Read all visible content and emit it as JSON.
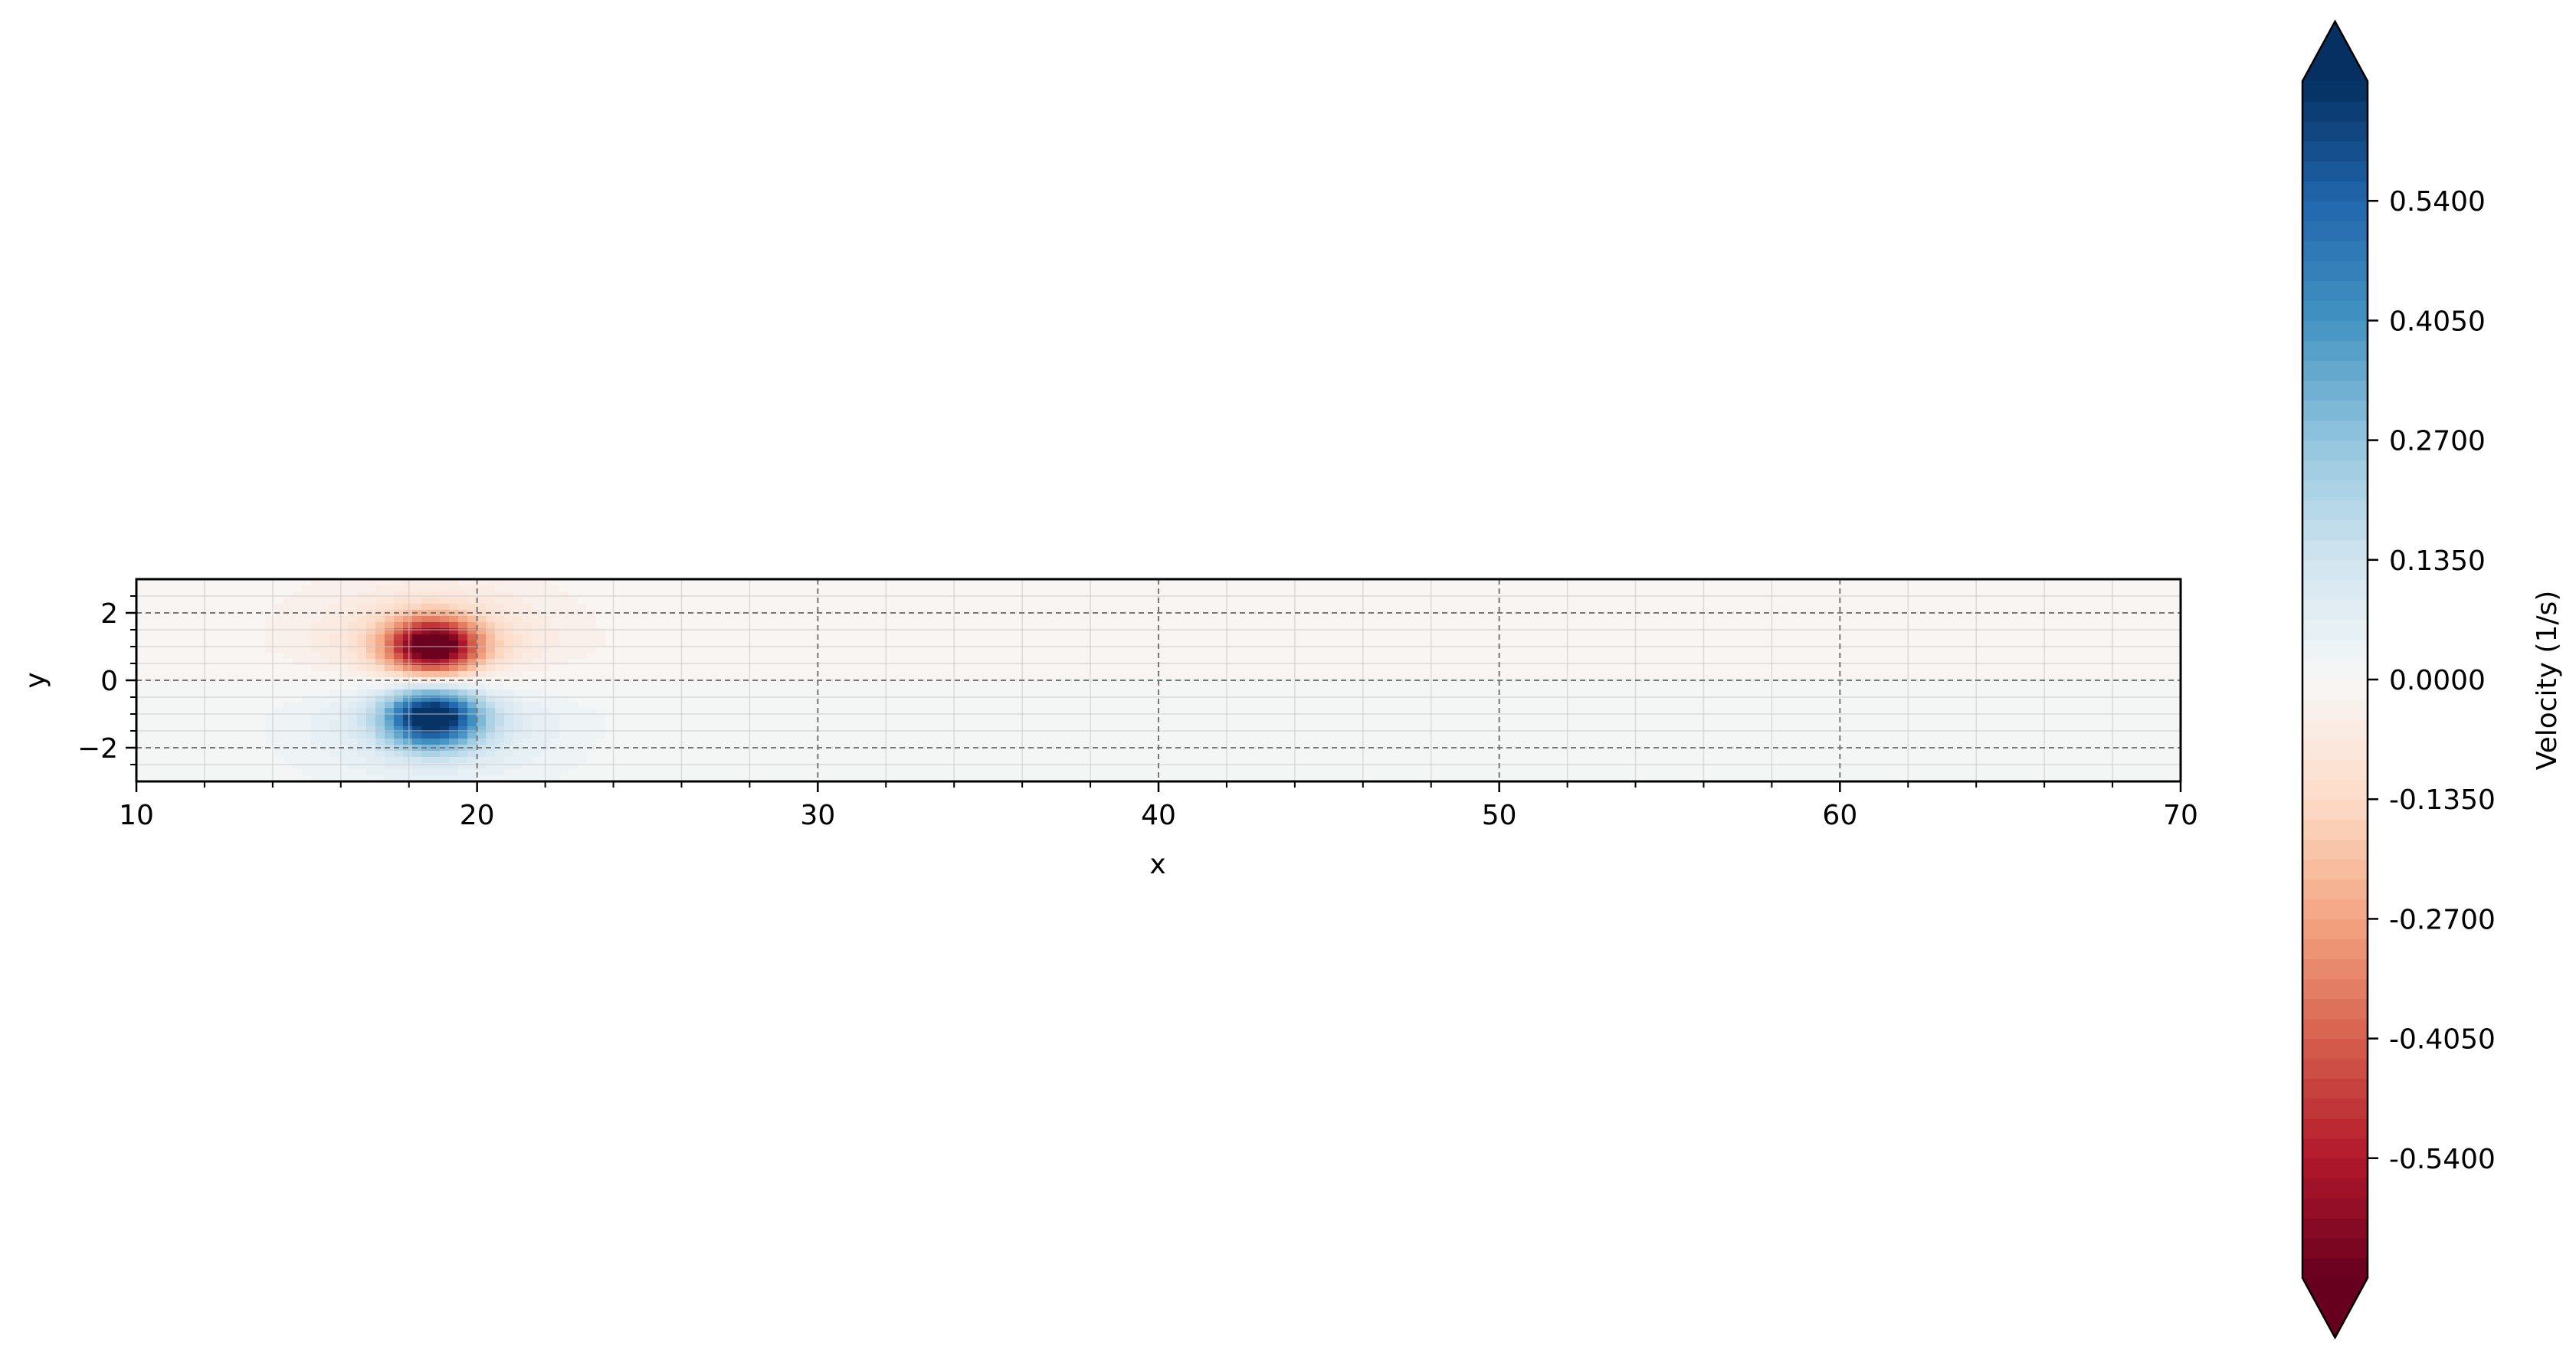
{
  "chart_data": {
    "type": "heatmap",
    "title": "",
    "xlabel": "x",
    "ylabel": "y",
    "xlim": [
      10,
      70
    ],
    "ylim": [
      -3,
      3
    ],
    "xticks": [
      "10",
      "20",
      "30",
      "40",
      "50",
      "60",
      "70"
    ],
    "yticks": [
      "2",
      "0",
      "−2"
    ],
    "x_tick_values": [
      10,
      20,
      30,
      40,
      50,
      60,
      70
    ],
    "y_tick_values": [
      2,
      0,
      -2
    ],
    "grid": true,
    "colormap": "RdBu",
    "colorbar": {
      "label": "Velocity (1/s)",
      "ticks": [
        "0.5400",
        "0.4050",
        "0.2700",
        "0.1350",
        "0.0000",
        "-0.1350",
        "-0.2700",
        "-0.4050",
        "-0.5400"
      ],
      "tick_values": [
        0.54,
        0.405,
        0.27,
        0.135,
        0.0,
        -0.135,
        -0.27,
        -0.405,
        -0.54
      ],
      "range": [
        -0.675,
        0.675
      ],
      "extend": "both",
      "placement": "right"
    },
    "field": {
      "description_free": true,
      "vortices": [
        {
          "x": 18.7,
          "y": 1.0,
          "sign": -1
        },
        {
          "x": 18.7,
          "y": -1.1,
          "sign": 1
        }
      ],
      "peak_magnitude": 0.675
    }
  }
}
